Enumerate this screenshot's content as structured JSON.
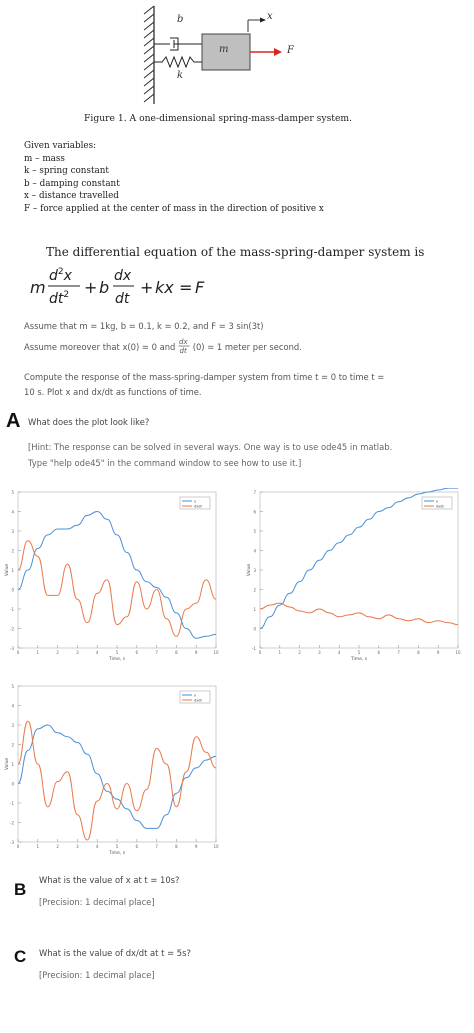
{
  "figure": {
    "label_b": "b",
    "label_m": "m",
    "label_k": "k",
    "label_F": "F",
    "label_x": "x",
    "caption": "Figure 1. A one-dimensional spring-mass-damper system."
  },
  "given": {
    "title": "Given variables:",
    "items": [
      "m – mass",
      "k – spring constant",
      "b – damping constant",
      "x – distance travelled",
      "F – force applied at the center of mass in the direction of positive x"
    ]
  },
  "equation": {
    "heading": "The differential equation of the mass-spring-damper system is"
  },
  "assumptions": {
    "line1": "Assume that m = 1kg, b = 0.1, k = 0.2, and F = 3 sin(3t)",
    "line2_prefix": "Assume moreover that x(0) = 0 and",
    "line2_suffix": "(0) = 1 meter per second."
  },
  "compute": {
    "line1": "Compute the response of the mass-spring-damper system from time t = 0 to time t =",
    "line2": "10 s. Plot x and dx/dt as functions of time."
  },
  "question_a": {
    "letter": "A",
    "text": "What does the plot look like?",
    "hint1": "[Hint: The response can be solved in several ways. One way is to use ode45 in matlab.",
    "hint2": "Type \"help ode45\" in the command window to see how to use it.]"
  },
  "question_b": {
    "letter": "B",
    "text": "What is the value of x at t = 10s?",
    "precision": "[Precision: 1 decimal place]"
  },
  "question_c": {
    "letter": "C",
    "text": "What is the value of dx/dt at t = 5s?",
    "precision": "[Precision: 1 decimal place]"
  },
  "chart_data": [
    {
      "type": "line",
      "xlabel": "Time, s",
      "ylabel": "Value",
      "xlim": [
        0,
        10
      ],
      "ylim": [
        -3,
        5
      ],
      "legend": "top-right",
      "series": [
        {
          "name": "x",
          "color": "#4a90d9",
          "x": [
            0,
            0.5,
            1,
            1.5,
            2,
            2.5,
            3,
            3.5,
            4,
            4.5,
            5,
            5.5,
            6,
            6.5,
            7,
            7.5,
            8,
            8.5,
            9,
            9.5,
            10
          ],
          "values": [
            0,
            1.0,
            2.1,
            2.8,
            3.1,
            3.1,
            3.3,
            3.8,
            4.0,
            3.6,
            2.8,
            1.9,
            1.0,
            0.4,
            0.1,
            -0.4,
            -1.2,
            -2.0,
            -2.5,
            -2.4,
            -2.3
          ]
        },
        {
          "name": "dxdt",
          "color": "#e8794a",
          "x": [
            0,
            0.5,
            1,
            1.5,
            2,
            2.5,
            3,
            3.5,
            4,
            4.5,
            5,
            5.5,
            6,
            6.5,
            7,
            7.5,
            8,
            8.5,
            9,
            9.5,
            10
          ],
          "values": [
            1,
            2.5,
            1.7,
            -0.3,
            -0.3,
            1.3,
            -0.5,
            -1.7,
            -0.2,
            0.5,
            -1.8,
            -1.4,
            0.4,
            -1.0,
            0.0,
            -1.5,
            -2.4,
            -1.0,
            -0.7,
            0.5,
            -0.5
          ]
        }
      ]
    },
    {
      "type": "line",
      "xlabel": "Time, s",
      "ylabel": "Value",
      "xlim": [
        0,
        10
      ],
      "ylim": [
        -1,
        7
      ],
      "legend": "top-right",
      "series": [
        {
          "name": "x",
          "color": "#4a90d9",
          "x": [
            0,
            0.5,
            1,
            1.5,
            2,
            2.5,
            3,
            3.5,
            4,
            4.5,
            5,
            5.5,
            6,
            6.5,
            7,
            7.5,
            8,
            8.5,
            9,
            9.5,
            10
          ],
          "values": [
            0,
            0.6,
            1.2,
            1.8,
            2.4,
            3.0,
            3.5,
            4.0,
            4.4,
            4.8,
            5.2,
            5.6,
            6.0,
            6.2,
            6.5,
            6.7,
            6.9,
            7.0,
            7.1,
            7.2,
            7.2
          ]
        },
        {
          "name": "dxdt",
          "color": "#e8794a",
          "x": [
            0,
            0.5,
            1,
            1.5,
            2,
            2.5,
            3,
            3.5,
            4,
            4.5,
            5,
            5.5,
            6,
            6.5,
            7,
            7.5,
            8,
            8.5,
            9,
            9.5,
            10
          ],
          "values": [
            1,
            1.2,
            1.3,
            1.1,
            0.9,
            0.8,
            1.0,
            0.8,
            0.6,
            0.7,
            0.8,
            0.6,
            0.5,
            0.7,
            0.5,
            0.4,
            0.5,
            0.3,
            0.4,
            0.3,
            0.2
          ]
        }
      ]
    },
    {
      "type": "line",
      "xlabel": "Time, s",
      "ylabel": "Value",
      "xlim": [
        0,
        10
      ],
      "ylim": [
        -3,
        5
      ],
      "legend": "top-right",
      "series": [
        {
          "name": "x",
          "color": "#4a90d9",
          "x": [
            0,
            0.5,
            1,
            1.5,
            2,
            2.5,
            3,
            3.5,
            4,
            4.5,
            5,
            5.5,
            6,
            6.5,
            7,
            7.5,
            8,
            8.5,
            9,
            9.5,
            10
          ],
          "values": [
            0,
            1.7,
            2.8,
            3.0,
            2.6,
            2.4,
            2.1,
            1.5,
            0.5,
            -0.4,
            -0.8,
            -1.3,
            -1.9,
            -2.3,
            -2.3,
            -1.6,
            -0.5,
            0.3,
            0.8,
            1.2,
            1.4
          ]
        },
        {
          "name": "dxdt",
          "color": "#e8794a",
          "x": [
            0,
            0.5,
            1,
            1.5,
            2,
            2.5,
            3,
            3.5,
            4,
            4.5,
            5,
            5.5,
            6,
            6.5,
            7,
            7.5,
            8,
            8.5,
            9,
            9.5,
            10
          ],
          "values": [
            1,
            3.2,
            1.0,
            -1.2,
            0.1,
            0.6,
            -1.6,
            -2.9,
            -0.9,
            0.0,
            -1.3,
            0.0,
            -1.4,
            -0.3,
            1.8,
            1.0,
            -1.2,
            0.6,
            2.4,
            1.6,
            0.8
          ]
        }
      ]
    }
  ]
}
